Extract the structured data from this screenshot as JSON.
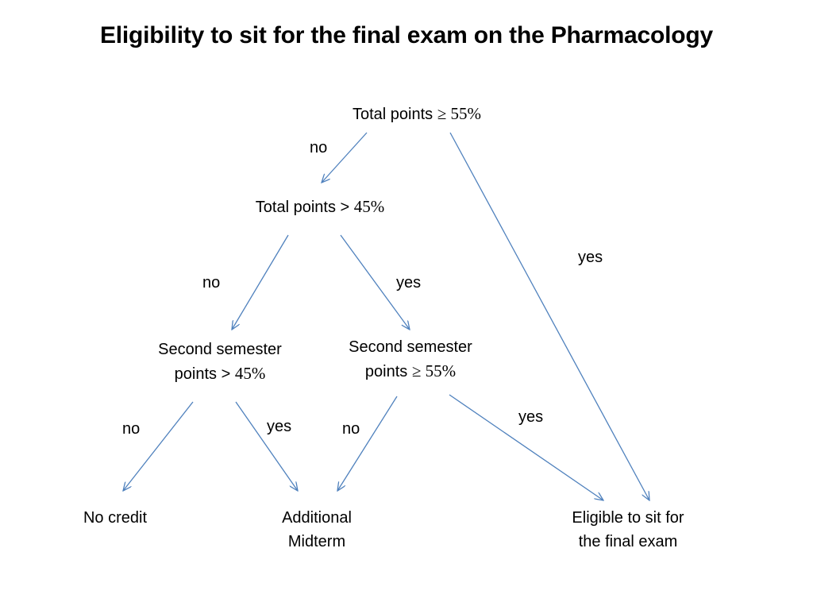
{
  "title": "Eligibility to sit for the final exam on the Pharmacology",
  "nodes": {
    "root": {
      "text": "Total points ",
      "math": "≥ 55%"
    },
    "mid": {
      "text": "Total points > ",
      "math": "45%"
    },
    "left_q": {
      "line1": "Second semester",
      "line2": "points > ",
      "math": "45%"
    },
    "right_q": {
      "line1": "Second semester",
      "line2": "points ",
      "math": "≥ 55%"
    },
    "no_credit": {
      "text": "No credit"
    },
    "additional": {
      "line1": "Additional",
      "line2": "Midterm"
    },
    "eligible": {
      "line1": "Eligible to sit for",
      "line2": "the final exam"
    }
  },
  "edges": {
    "root_mid": "no",
    "root_eligible": "yes",
    "mid_left": "no",
    "mid_right": "yes",
    "left_nocredit": "no",
    "left_additional": "yes",
    "right_additional": "no",
    "right_eligible": "yes"
  },
  "colors": {
    "arrow": "#4f81bd",
    "text": "#000000"
  }
}
